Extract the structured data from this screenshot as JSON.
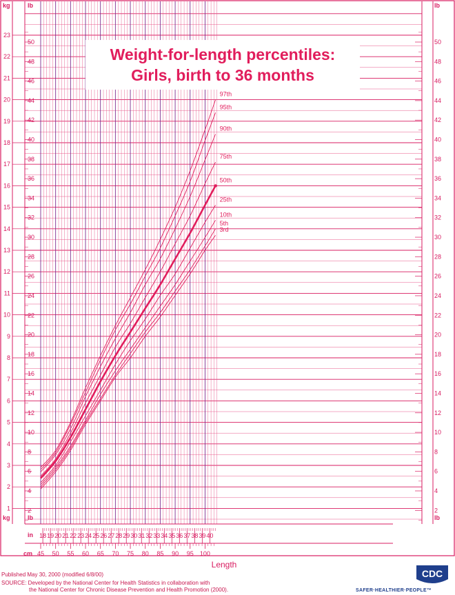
{
  "title_line1": "Weight-for-length percentiles:",
  "title_line2": "Girls, birth to 36 months",
  "footer": {
    "published": "Published May 30, 2000 (modified 6/8/00)",
    "source1": "SOURCE: Developed by the National Center for Health Statistics in collaboration with",
    "source2": "the National Center for Chronic Disease Prevention and Health Promotion (2000)."
  },
  "logo": {
    "text": "CDC",
    "tagline": "SAFER·HEALTHIER·PEOPLE™",
    "icon": "cdc-logo-icon"
  },
  "colors": {
    "grid": "#e8578a",
    "major": "#d81b60",
    "curve": "#e11d5c",
    "accent": "#7b2d8e",
    "axis_text": "#d81b60"
  },
  "chart_data": {
    "type": "line",
    "xlabel": "Length",
    "x_unit_cm": "cm",
    "x_unit_in": "in",
    "y_unit_kg": "kg",
    "y_unit_lb": "lb",
    "xlim_cm": [
      45,
      104
    ],
    "ylim_kg": [
      0.5,
      24
    ],
    "x_ticks_cm": [
      45,
      50,
      55,
      60,
      65,
      70,
      75,
      80,
      85,
      90,
      95,
      100
    ],
    "x_ticks_in": [
      18,
      19,
      20,
      21,
      22,
      23,
      24,
      25,
      26,
      27,
      28,
      29,
      30,
      31,
      32,
      33,
      34,
      35,
      36,
      37,
      38,
      39,
      40
    ],
    "y_ticks_kg": [
      1,
      2,
      3,
      4,
      5,
      6,
      7,
      8,
      9,
      10,
      11,
      12,
      13,
      14,
      15,
      16,
      17,
      18,
      19,
      20,
      21,
      22,
      23
    ],
    "y_ticks_lb": [
      2,
      4,
      6,
      8,
      10,
      12,
      14,
      16,
      18,
      20,
      22,
      24,
      26,
      28,
      30,
      32,
      34,
      36,
      38,
      40,
      42,
      44,
      46,
      48,
      50
    ],
    "length_cm": [
      45,
      50,
      55,
      60,
      65,
      70,
      75,
      80,
      85,
      90,
      95,
      100,
      103.5
    ],
    "series": [
      {
        "name": "97th",
        "values": [
          2.9,
          3.7,
          5.0,
          6.6,
          8.1,
          9.5,
          10.8,
          12.1,
          13.5,
          15.0,
          16.7,
          18.6,
          20.0
        ]
      },
      {
        "name": "95th",
        "values": [
          2.8,
          3.6,
          4.9,
          6.4,
          7.9,
          9.3,
          10.5,
          11.8,
          13.1,
          14.6,
          16.2,
          18.1,
          19.4
        ]
      },
      {
        "name": "90th",
        "values": [
          2.7,
          3.5,
          4.7,
          6.2,
          7.6,
          8.9,
          10.1,
          11.4,
          12.6,
          14.0,
          15.5,
          17.2,
          18.4
        ]
      },
      {
        "name": "75th",
        "values": [
          2.5,
          3.3,
          4.5,
          5.9,
          7.2,
          8.5,
          9.6,
          10.8,
          12.0,
          13.3,
          14.6,
          16.1,
          17.1
        ]
      },
      {
        "name": "50th",
        "values": [
          2.4,
          3.2,
          4.3,
          5.6,
          6.9,
          8.1,
          9.2,
          10.3,
          11.4,
          12.6,
          13.8,
          15.1,
          16.0
        ]
      },
      {
        "name": "25th",
        "values": [
          2.2,
          3.0,
          4.1,
          5.3,
          6.5,
          7.7,
          8.8,
          9.8,
          10.9,
          11.9,
          13.1,
          14.3,
          15.1
        ]
      },
      {
        "name": "10th",
        "values": [
          2.1,
          2.9,
          3.9,
          5.1,
          6.3,
          7.4,
          8.4,
          9.4,
          10.4,
          11.4,
          12.5,
          13.6,
          14.4
        ]
      },
      {
        "name": "5th",
        "values": [
          2.0,
          2.8,
          3.8,
          5.0,
          6.1,
          7.2,
          8.2,
          9.2,
          10.1,
          11.1,
          12.1,
          13.2,
          14.0
        ]
      },
      {
        "name": "3rd",
        "values": [
          1.9,
          2.7,
          3.7,
          4.9,
          6.0,
          7.1,
          8.0,
          9.0,
          9.9,
          10.9,
          11.9,
          13.0,
          13.7
        ]
      }
    ]
  }
}
